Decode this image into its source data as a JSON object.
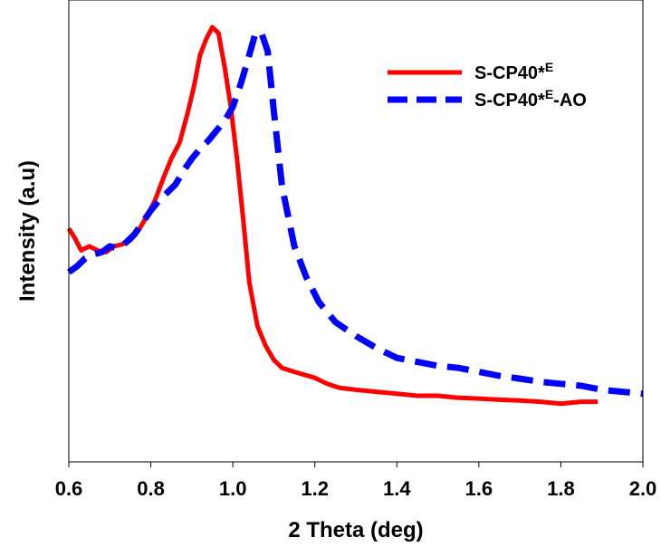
{
  "chart_data": {
    "type": "line",
    "xlabel": "2 Theta (deg)",
    "ylabel": "Intensity (a.u)",
    "xlim": [
      0.6,
      2.0
    ],
    "ylim": [
      0,
      1
    ],
    "x_ticks": [
      "0.6",
      "0.8",
      "1.0",
      "1.2",
      "1.4",
      "1.6",
      "1.8",
      "2.0"
    ],
    "y_ticks_shown": false,
    "grid": false,
    "legend_position": "top-right",
    "series": [
      {
        "name": "S-CP40*E",
        "legend_base": "S-CP40*",
        "legend_sup": "E",
        "legend_suffix": "",
        "color": "#ff0000",
        "dash": "solid",
        "x": [
          0.6,
          0.615,
          0.63,
          0.65,
          0.67,
          0.69,
          0.71,
          0.73,
          0.75,
          0.77,
          0.79,
          0.81,
          0.83,
          0.85,
          0.87,
          0.89,
          0.905,
          0.92,
          0.935,
          0.95,
          0.965,
          0.98,
          0.995,
          1.01,
          1.025,
          1.04,
          1.06,
          1.08,
          1.1,
          1.12,
          1.15,
          1.2,
          1.23,
          1.26,
          1.3,
          1.35,
          1.4,
          1.45,
          1.5,
          1.55,
          1.6,
          1.65,
          1.7,
          1.75,
          1.8,
          1.85,
          1.89
        ],
        "y": [
          0.495,
          0.47,
          0.44,
          0.45,
          0.44,
          0.435,
          0.45,
          0.455,
          0.465,
          0.49,
          0.525,
          0.565,
          0.62,
          0.67,
          0.71,
          0.785,
          0.85,
          0.93,
          0.97,
          1.0,
          0.985,
          0.9,
          0.8,
          0.67,
          0.52,
          0.36,
          0.25,
          0.2,
          0.165,
          0.145,
          0.135,
          0.12,
          0.105,
          0.095,
          0.09,
          0.085,
          0.08,
          0.075,
          0.075,
          0.07,
          0.068,
          0.065,
          0.063,
          0.06,
          0.055,
          0.06,
          0.06
        ]
      },
      {
        "name": "S-CP40*E-AO",
        "legend_base": "S-CP40*",
        "legend_sup": "E",
        "legend_suffix": "-AO",
        "color": "#0000ff",
        "dash": "dashed",
        "x": [
          0.6,
          0.62,
          0.64,
          0.66,
          0.68,
          0.7,
          0.72,
          0.74,
          0.76,
          0.78,
          0.8,
          0.82,
          0.84,
          0.86,
          0.88,
          0.9,
          0.92,
          0.94,
          0.96,
          0.98,
          1.0,
          1.02,
          1.04,
          1.055,
          1.07,
          1.085,
          1.1,
          1.12,
          1.15,
          1.18,
          1.21,
          1.25,
          1.3,
          1.35,
          1.4,
          1.45,
          1.5,
          1.55,
          1.6,
          1.65,
          1.7,
          1.75,
          1.8,
          1.85,
          1.9,
          1.95,
          2.0
        ],
        "y": [
          0.385,
          0.4,
          0.42,
          0.43,
          0.435,
          0.45,
          0.445,
          0.46,
          0.48,
          0.51,
          0.54,
          0.565,
          0.585,
          0.605,
          0.64,
          0.67,
          0.695,
          0.715,
          0.74,
          0.765,
          0.8,
          0.86,
          0.93,
          0.985,
          0.985,
          0.94,
          0.79,
          0.6,
          0.45,
          0.37,
          0.31,
          0.26,
          0.225,
          0.195,
          0.17,
          0.16,
          0.15,
          0.145,
          0.135,
          0.125,
          0.118,
          0.11,
          0.105,
          0.1,
          0.09,
          0.085,
          0.08
        ]
      }
    ]
  }
}
